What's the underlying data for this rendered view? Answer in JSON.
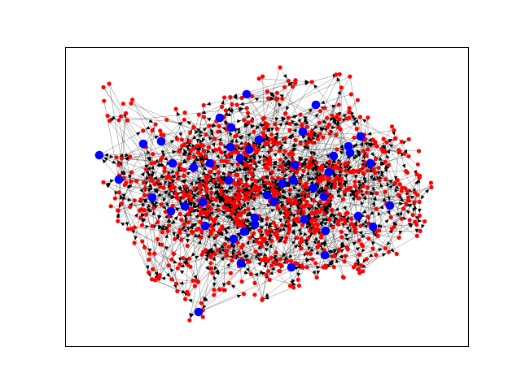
{
  "figure": {
    "background": "#ffffff",
    "frame_color": "#000000"
  },
  "chart_data": {
    "type": "network-graph",
    "directed": true,
    "axes": {
      "ticks": false,
      "grid": false
    },
    "node_colors": {
      "hub": "#0000ff",
      "regular": "#ff0000"
    },
    "edge_color": "#000000",
    "arrow_color": "#000000",
    "hub_nodes": [
      [
        122,
        191
      ],
      [
        146,
        221
      ],
      [
        176,
        177
      ],
      [
        187,
        243
      ],
      [
        198,
        174
      ],
      [
        212,
        201
      ],
      [
        227,
        254
      ],
      [
        238,
        206
      ],
      [
        244,
        384
      ],
      [
        252,
        278
      ],
      [
        270,
        145
      ],
      [
        284,
        157
      ],
      [
        283,
        181
      ],
      [
        295,
        195
      ],
      [
        281,
        222
      ],
      [
        303,
        116
      ],
      [
        287,
        294
      ],
      [
        300,
        285
      ],
      [
        313,
        276
      ],
      [
        296,
        324
      ],
      [
        336,
        248
      ],
      [
        347,
        226
      ],
      [
        360,
        222
      ],
      [
        372,
        162
      ],
      [
        362,
        203
      ],
      [
        388,
        129
      ],
      [
        385,
        231
      ],
      [
        374,
        270
      ],
      [
        398,
        242
      ],
      [
        404,
        212
      ],
      [
        410,
        192
      ],
      [
        428,
        180
      ],
      [
        430,
        188
      ],
      [
        443,
        168
      ],
      [
        455,
        201
      ],
      [
        440,
        266
      ],
      [
        458,
        279
      ],
      [
        479,
        253
      ],
      [
        400,
        284
      ],
      [
        399,
        314
      ],
      [
        358,
        329
      ],
      [
        318,
        172
      ],
      [
        306,
        184
      ],
      [
        249,
        249
      ],
      [
        210,
        260
      ],
      [
        258,
        201
      ],
      [
        328,
        240
      ],
      [
        313,
        268
      ]
    ]
  }
}
